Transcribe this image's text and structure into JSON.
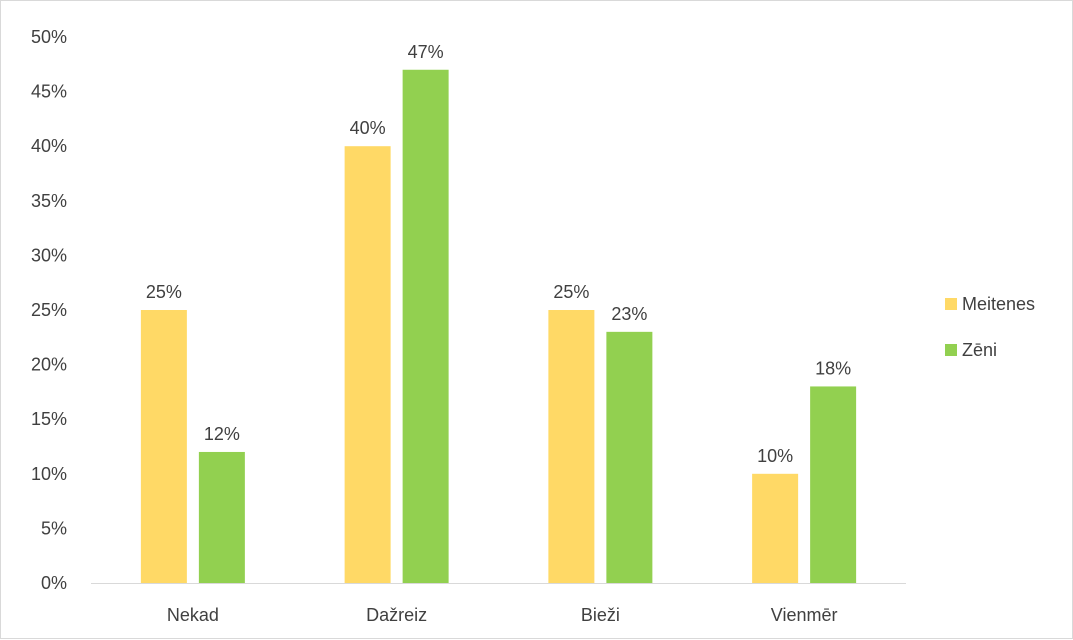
{
  "chart_data": {
    "type": "bar",
    "title": "",
    "xlabel": "",
    "ylabel": "",
    "categories": [
      "Nekad",
      "Dažreiz",
      "Bieži",
      "Vienmēr"
    ],
    "series": [
      {
        "name": "Meitenes",
        "color": "#FFD966",
        "values": [
          25,
          40,
          25,
          10
        ]
      },
      {
        "name": "Zēni",
        "color": "#92D050",
        "values": [
          12,
          47,
          23,
          18
        ]
      }
    ],
    "ylim": [
      0,
      50
    ],
    "yticks": [
      0,
      5,
      10,
      15,
      20,
      25,
      30,
      35,
      40,
      45,
      50
    ],
    "value_format": "percent",
    "grid": false,
    "legend_position": "right",
    "axis_color": "#d9d9d9",
    "text_color": "#404040"
  }
}
